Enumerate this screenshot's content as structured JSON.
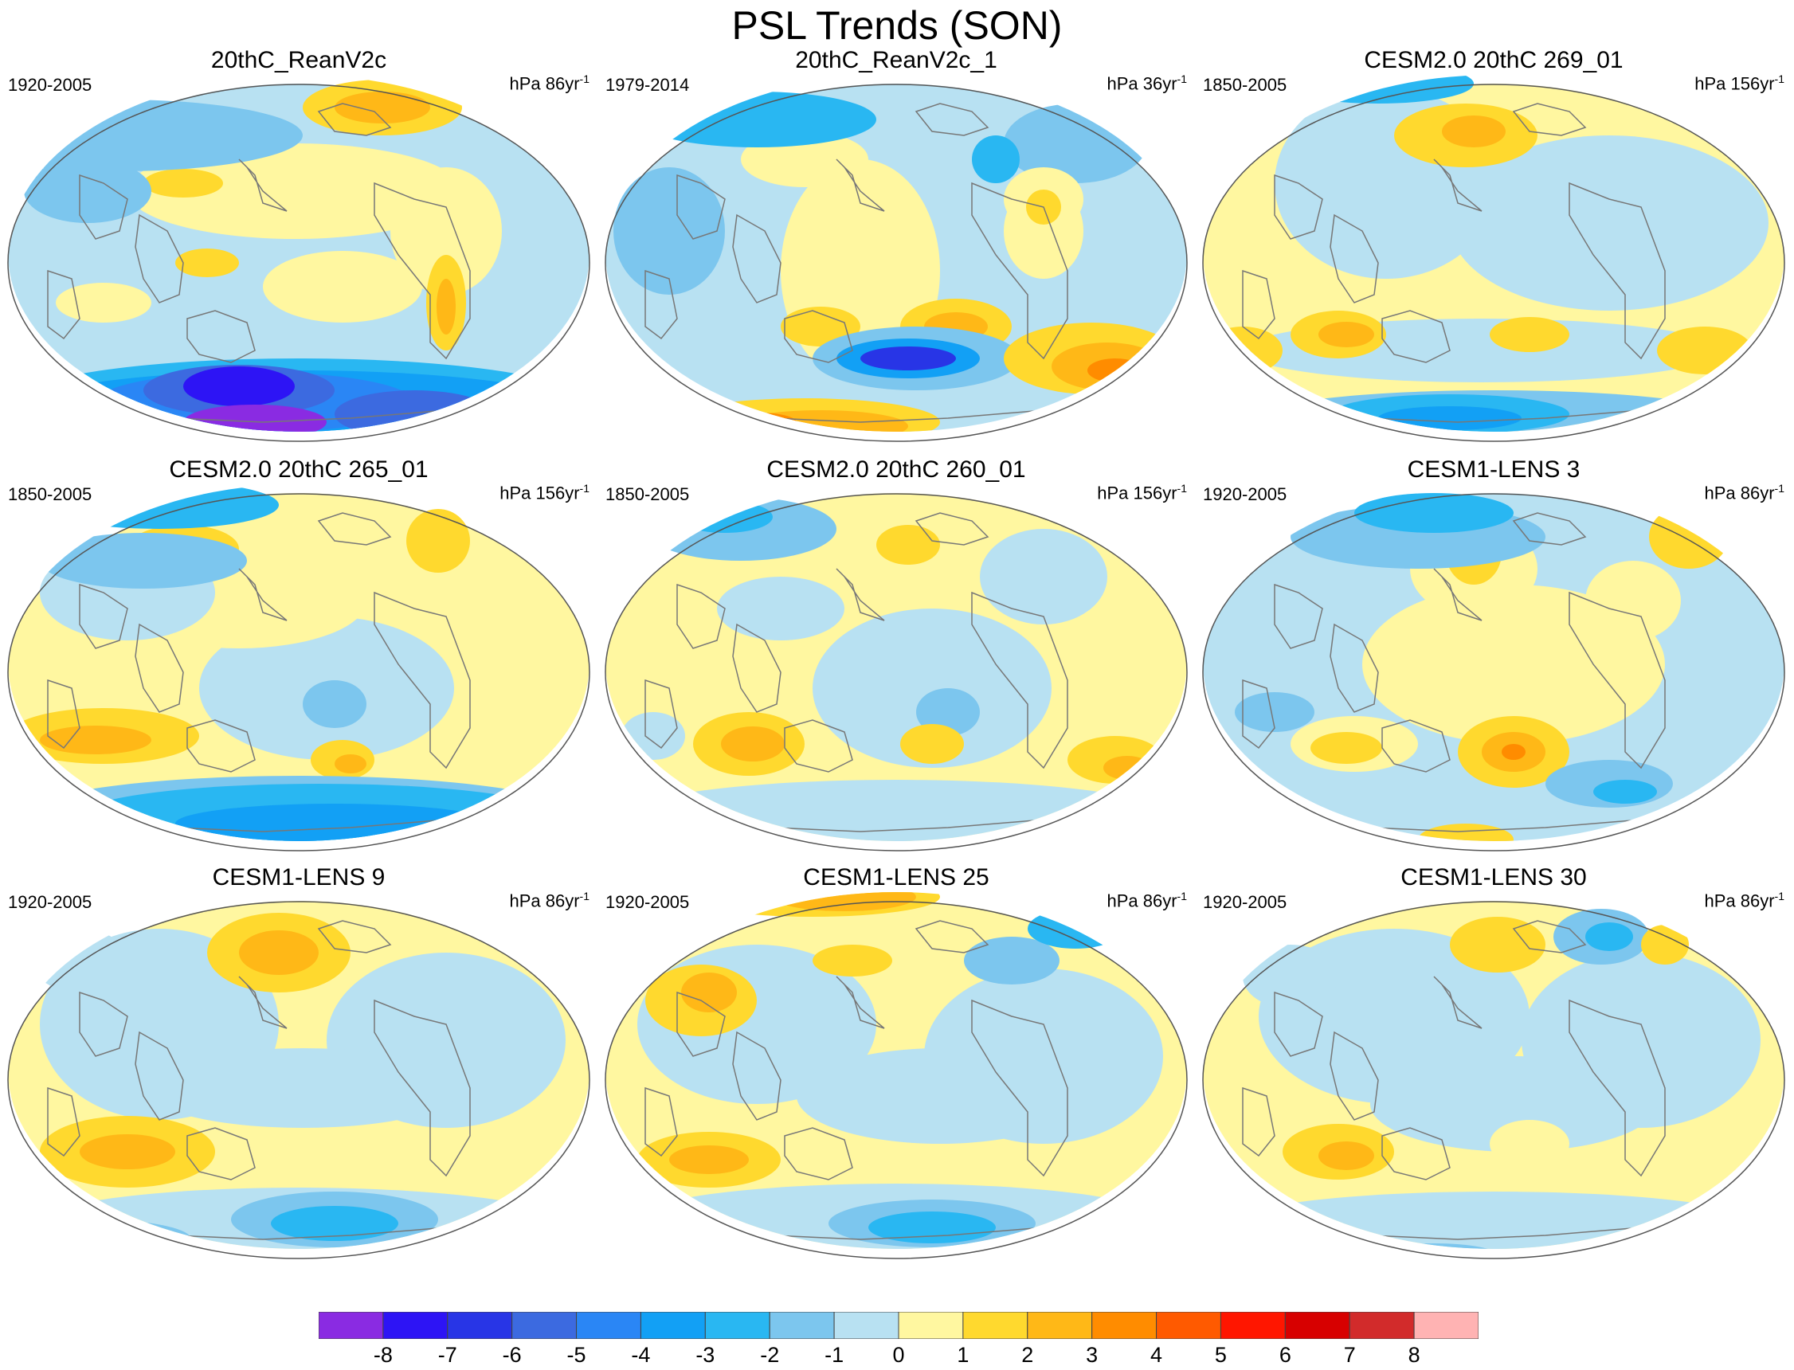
{
  "figure": {
    "title": "PSL Trends (SON)"
  },
  "panels": [
    {
      "title": "20thC_ReanV2c",
      "period": "1920-2005",
      "units_main": "hPa 86yr",
      "units_exp": "-1"
    },
    {
      "title": "20thC_ReanV2c_1",
      "period": "1979-2014",
      "units_main": "hPa 36yr",
      "units_exp": "-1"
    },
    {
      "title": "CESM2.0 20thC 269_01",
      "period": "1850-2005",
      "units_main": "hPa 156yr",
      "units_exp": "-1"
    },
    {
      "title": "CESM2.0 20thC 265_01",
      "period": "1850-2005",
      "units_main": "hPa 156yr",
      "units_exp": "-1"
    },
    {
      "title": "CESM2.0 20thC 260_01",
      "period": "1850-2005",
      "units_main": "hPa 156yr",
      "units_exp": "-1"
    },
    {
      "title": "CESM1-LENS 3",
      "period": "1920-2005",
      "units_main": "hPa 86yr",
      "units_exp": "-1"
    },
    {
      "title": "CESM1-LENS 9",
      "period": "1920-2005",
      "units_main": "hPa 86yr",
      "units_exp": "-1"
    },
    {
      "title": "CESM1-LENS 25",
      "period": "1920-2005",
      "units_main": "hPa 86yr",
      "units_exp": "-1"
    },
    {
      "title": "CESM1-LENS 30",
      "period": "1920-2005",
      "units_main": "hPa 86yr",
      "units_exp": "-1"
    }
  ],
  "colorbar": {
    "labels": [
      "-8",
      "-7",
      "-6",
      "-5",
      "-4",
      "-3",
      "-2",
      "-1",
      "0",
      "1",
      "2",
      "3",
      "4",
      "5",
      "6",
      "7",
      "8"
    ],
    "colors": [
      "#8a2be2",
      "#2d14f5",
      "#2835e6",
      "#3c6ae0",
      "#2a86f5",
      "#12a0f5",
      "#29b7f2",
      "#7cc6ee",
      "#b8e1f2",
      "#fff7a0",
      "#ffd92e",
      "#ffb817",
      "#ff8c00",
      "#ff5a00",
      "#ff1600",
      "#d70000",
      "#d22b2b",
      "#ffb3b3"
    ]
  },
  "colors": {
    "background": "#ffffff",
    "coast": "#777777",
    "map_border": "#555555"
  }
}
